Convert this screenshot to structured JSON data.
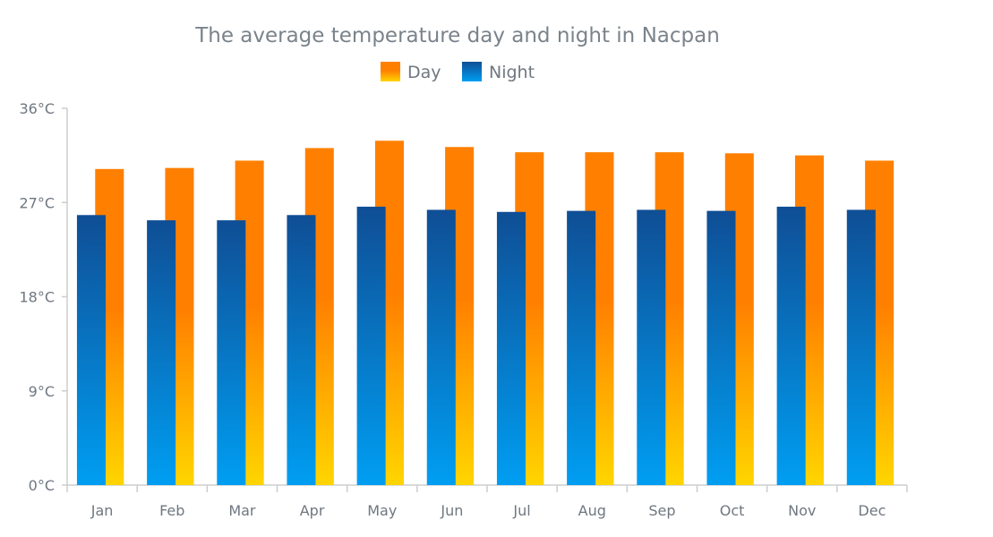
{
  "chart_data": {
    "type": "bar",
    "title": "The average temperature day and night in Nacpan",
    "categories": [
      "Jan",
      "Feb",
      "Mar",
      "Apr",
      "May",
      "Jun",
      "Jul",
      "Aug",
      "Sep",
      "Oct",
      "Nov",
      "Dec"
    ],
    "series": [
      {
        "name": "Day",
        "values": [
          30.2,
          30.3,
          31.0,
          32.2,
          32.9,
          32.3,
          31.8,
          31.8,
          31.8,
          31.7,
          31.5,
          31.0
        ],
        "colors": [
          "#ff8000",
          "#ffd500"
        ]
      },
      {
        "name": "Night",
        "values": [
          25.8,
          25.3,
          25.3,
          25.8,
          26.6,
          26.3,
          26.1,
          26.2,
          26.3,
          26.2,
          26.6,
          26.3
        ],
        "colors": [
          "#0f4e95",
          "#009ef2"
        ]
      }
    ],
    "ylim": [
      0,
      36
    ],
    "yticks": [
      0,
      9,
      18,
      27,
      36
    ],
    "ytick_labels": [
      "0°C",
      "9°C",
      "18°C",
      "27°C",
      "36°C"
    ],
    "xlabel": "",
    "ylabel": "",
    "legend_position": "top-center",
    "grid": false
  }
}
